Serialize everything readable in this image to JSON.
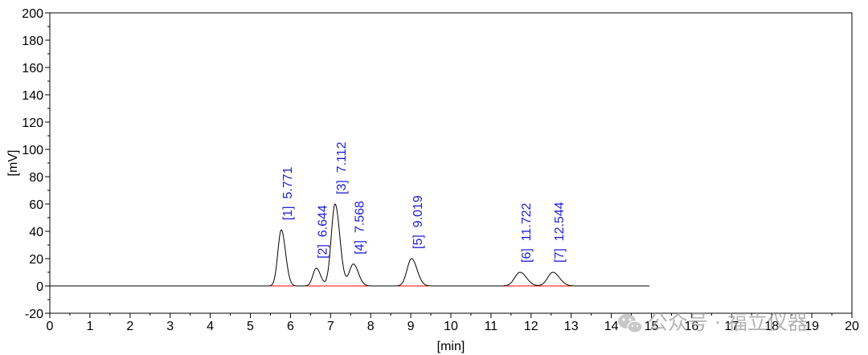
{
  "chart_data": {
    "type": "line",
    "xlabel": "[min]",
    "ylabel": "[mV]",
    "xlim": [
      0,
      20
    ],
    "ylim": [
      -20,
      200
    ],
    "x_ticks": [
      0,
      1,
      2,
      3,
      4,
      5,
      6,
      7,
      8,
      9,
      10,
      11,
      12,
      13,
      14,
      15,
      16,
      17,
      18,
      19,
      20
    ],
    "y_ticks": [
      -20,
      0,
      20,
      40,
      60,
      80,
      100,
      120,
      140,
      160,
      180,
      200
    ],
    "grid": false,
    "trace_range": [
      0,
      14.95
    ],
    "series_color": "#000000",
    "baseline_color": "#ff0000",
    "label_color": "#1f1fd6",
    "peaks": [
      {
        "label": "[1]  5.771",
        "rt": 5.771,
        "height": 41,
        "width": 0.085
      },
      {
        "label": "[2]  6.644",
        "rt": 6.644,
        "height": 13,
        "width": 0.085
      },
      {
        "label": "[3]  7.112",
        "rt": 7.112,
        "height": 60,
        "width": 0.095
      },
      {
        "label": "[4]  7.568",
        "rt": 7.568,
        "height": 16,
        "width": 0.1
      },
      {
        "label": "[5]  9.019",
        "rt": 9.019,
        "height": 20,
        "width": 0.11
      },
      {
        "label": "[6]  11.722",
        "rt": 11.722,
        "height": 10,
        "width": 0.13
      },
      {
        "label": "[7]  12.544",
        "rt": 12.544,
        "height": 10,
        "width": 0.13
      }
    ]
  },
  "watermark": {
    "icon": "wechat-icon",
    "text": "公众号 · 福立仪器"
  }
}
